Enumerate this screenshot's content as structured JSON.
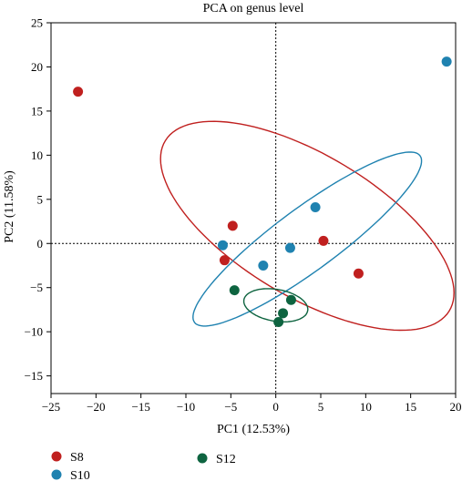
{
  "chart_data": {
    "type": "scatter",
    "title": "PCA on genus level",
    "xlabel": "PC1 (12.53%)",
    "ylabel": "PC2 (11.58%)",
    "xlim": [
      -25,
      20
    ],
    "ylim": [
      -17,
      25
    ],
    "xticks": [
      -25,
      -20,
      -15,
      -10,
      -5,
      0,
      5,
      10,
      15,
      20
    ],
    "yticks": [
      -15,
      -10,
      -5,
      0,
      5,
      10,
      15,
      20,
      25
    ],
    "reference_lines": {
      "x": 0,
      "y": 0,
      "style": "dotted"
    },
    "legend_position": "bottom-left",
    "series": [
      {
        "name": "S8",
        "color": "#c0201f",
        "points": [
          [
            -22,
            17.2
          ],
          [
            -4.8,
            2
          ],
          [
            -5.7,
            -1.9
          ],
          [
            5.3,
            0.3
          ],
          [
            9.2,
            -3.4
          ]
        ],
        "ellipse": {
          "cx": 3.5,
          "cy": 2,
          "rx": 18.5,
          "ry": 8,
          "angle_deg": -31.5
        }
      },
      {
        "name": "S10",
        "color": "#1f82b0",
        "points": [
          [
            19,
            20.6
          ],
          [
            -5.9,
            -0.2
          ],
          [
            -1.4,
            -2.5
          ],
          [
            1.6,
            -0.5
          ],
          [
            4.4,
            4.1
          ]
        ],
        "ellipse": {
          "cx": 3.5,
          "cy": 0.5,
          "rx": 15.7,
          "ry": 3.5,
          "angle_deg": 37
        }
      },
      {
        "name": "S12",
        "color": "#0e6440",
        "points": [
          [
            -4.6,
            -5.3
          ],
          [
            1.7,
            -6.4
          ],
          [
            0.8,
            -7.9
          ],
          [
            0.3,
            -8.9
          ]
        ],
        "ellipse": {
          "cx": 0,
          "cy": -7,
          "rx": 3.6,
          "ry": 1.8,
          "angle_deg": -10
        }
      }
    ]
  }
}
